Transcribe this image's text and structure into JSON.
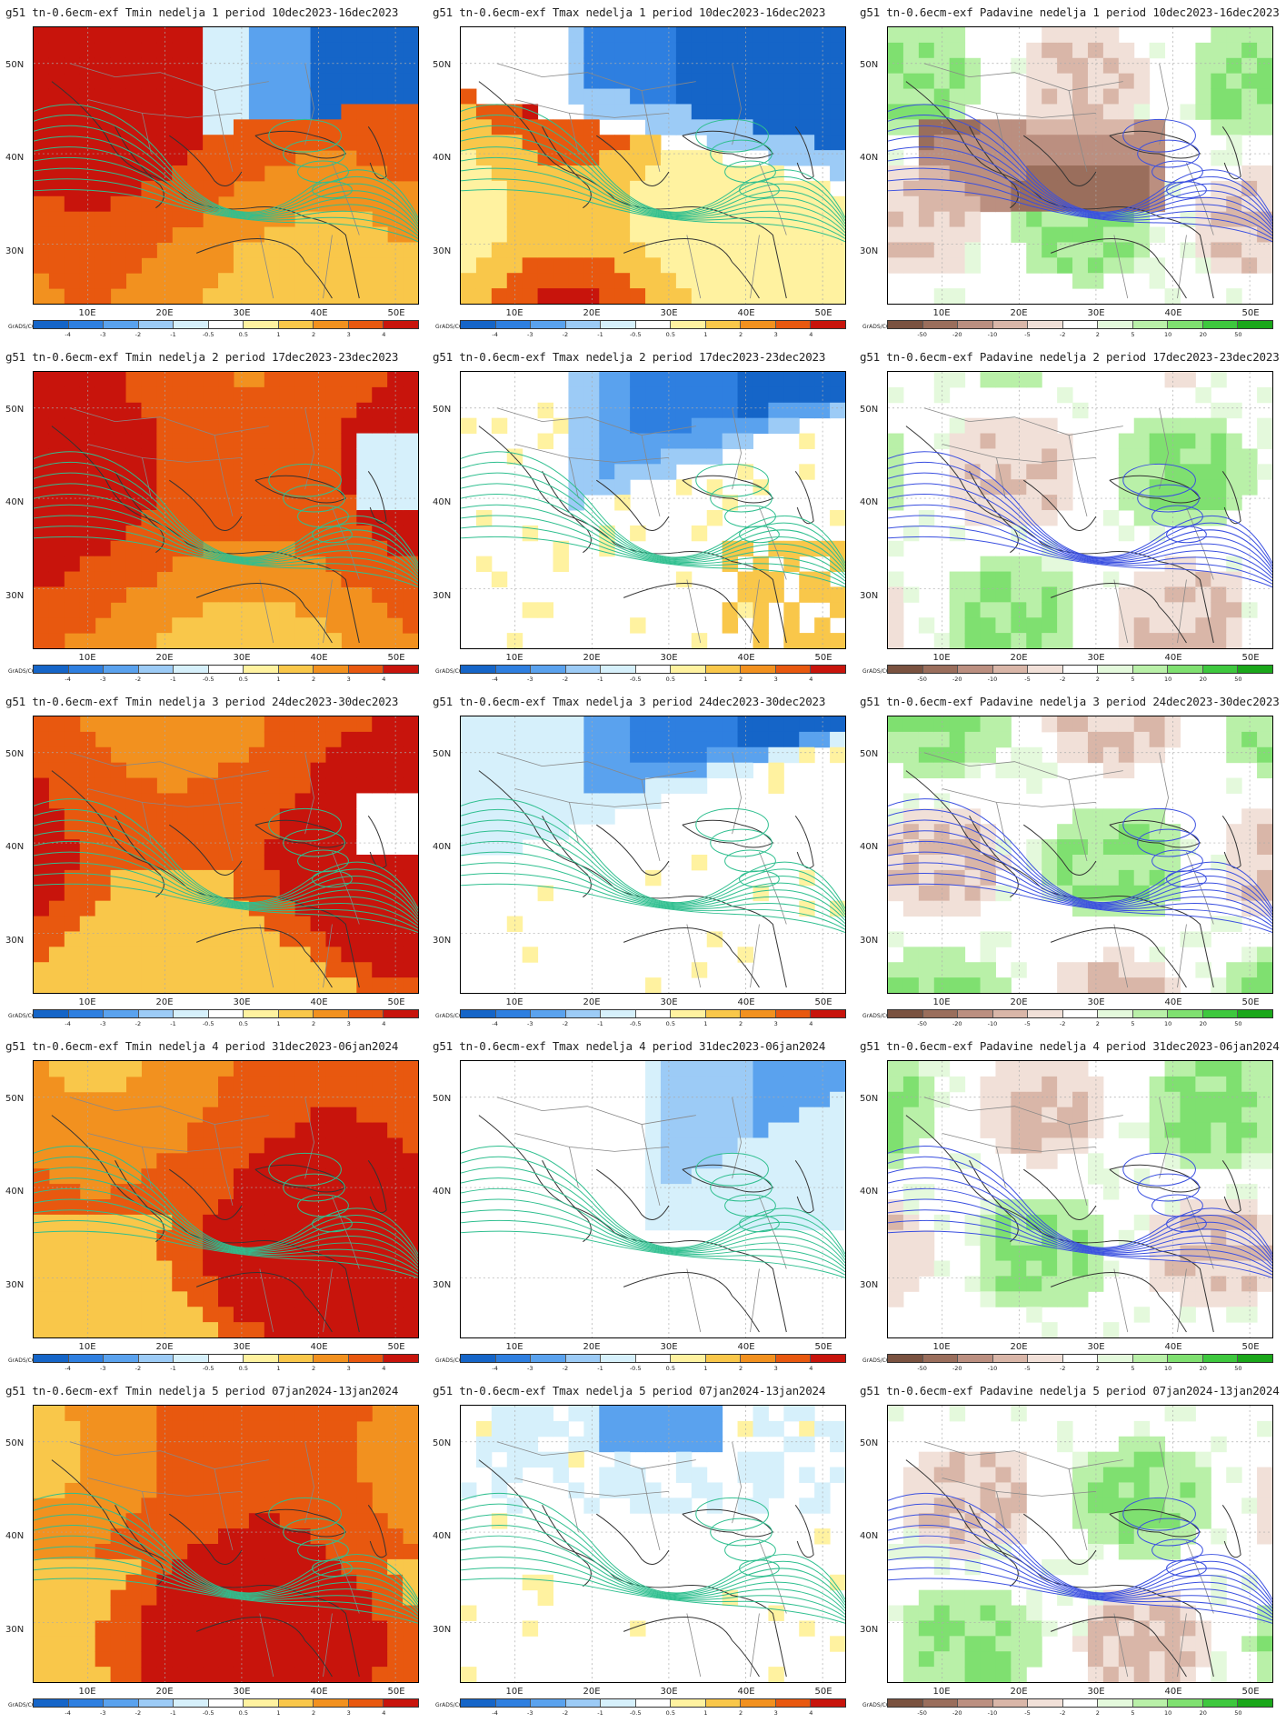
{
  "figure": {
    "x_ticks": [
      "10E",
      "20E",
      "30E",
      "40E",
      "50E"
    ],
    "y_ticks": [
      "50N",
      "40N",
      "30N"
    ],
    "credit": "GrADS/COLA",
    "temp_scale": {
      "labels": [
        "-4",
        "-3",
        "-2",
        "-1",
        "-0.5",
        "0.5",
        "1",
        "2",
        "3",
        "4"
      ],
      "colors": [
        "#1565c8",
        "#2e7fe0",
        "#5aa2ee",
        "#9ccbf6",
        "#d6f0fb",
        "#ffffff",
        "#fff2a0",
        "#f9c74a",
        "#f2911f",
        "#e8580f",
        "#c8140c"
      ]
    },
    "precip_scale": {
      "labels": [
        "-50",
        "-20",
        "-10",
        "-5",
        "-2",
        "2",
        "5",
        "10",
        "20",
        "50"
      ],
      "colors": [
        "#7a5240",
        "#9a6e5c",
        "#bb8f80",
        "#d9b6a8",
        "#f1e0d8",
        "#ffffff",
        "#e4f9dc",
        "#b9f0a8",
        "#7fe070",
        "#3ec83e",
        "#1aa71a"
      ]
    }
  },
  "panels": [
    {
      "title": "g51 tn-0.6ecm-exf Tmin nedelja 1 period 10dec2023-16dec2023",
      "var": "tmin",
      "week": 1
    },
    {
      "title": "g51 tn-0.6ecm-exf Tmax nedelja 1 period 10dec2023-16dec2023",
      "var": "tmax",
      "week": 1
    },
    {
      "title": "g51 tn-0.6ecm-exf Padavine nedelja 1 period 10dec2023-16dec2023",
      "var": "precip",
      "week": 1
    },
    {
      "title": "g51 tn-0.6ecm-exf Tmin nedelja 2 period 17dec2023-23dec2023",
      "var": "tmin",
      "week": 2
    },
    {
      "title": "g51 tn-0.6ecm-exf Tmax nedelja 2 period 17dec2023-23dec2023",
      "var": "tmax",
      "week": 2
    },
    {
      "title": "g51 tn-0.6ecm-exf Padavine nedelja 2 period 17dec2023-23dec2023",
      "var": "precip",
      "week": 2
    },
    {
      "title": "g51 tn-0.6ecm-exf Tmin nedelja 3 period 24dec2023-30dec2023",
      "var": "tmin",
      "week": 3
    },
    {
      "title": "g51 tn-0.6ecm-exf Tmax nedelja 3 period 24dec2023-30dec2023",
      "var": "tmax",
      "week": 3
    },
    {
      "title": "g51 tn-0.6ecm-exf Padavine nedelja 3 period 24dec2023-30dec2023",
      "var": "precip",
      "week": 3
    },
    {
      "title": "g51 tn-0.6ecm-exf Tmin nedelja 4 period 31dec2023-06jan2024",
      "var": "tmin",
      "week": 4
    },
    {
      "title": "g51 tn-0.6ecm-exf Tmax nedelja 4 period 31dec2023-06jan2024",
      "var": "tmax",
      "week": 4
    },
    {
      "title": "g51 tn-0.6ecm-exf Padavine nedelja 4 period 31dec2023-06jan2024",
      "var": "precip",
      "week": 4
    },
    {
      "title": "g51 tn-0.6ecm-exf Tmin nedelja 5 period 07jan2024-13jan2024",
      "var": "tmin",
      "week": 5
    },
    {
      "title": "g51 tn-0.6ecm-exf Tmax nedelja 5 period 07jan2024-13jan2024",
      "var": "tmax",
      "week": 5
    },
    {
      "title": "g51 tn-0.6ecm-exf Padavine nedelja 5 period 07jan2024-13jan2024",
      "var": "precip",
      "week": 5
    }
  ]
}
